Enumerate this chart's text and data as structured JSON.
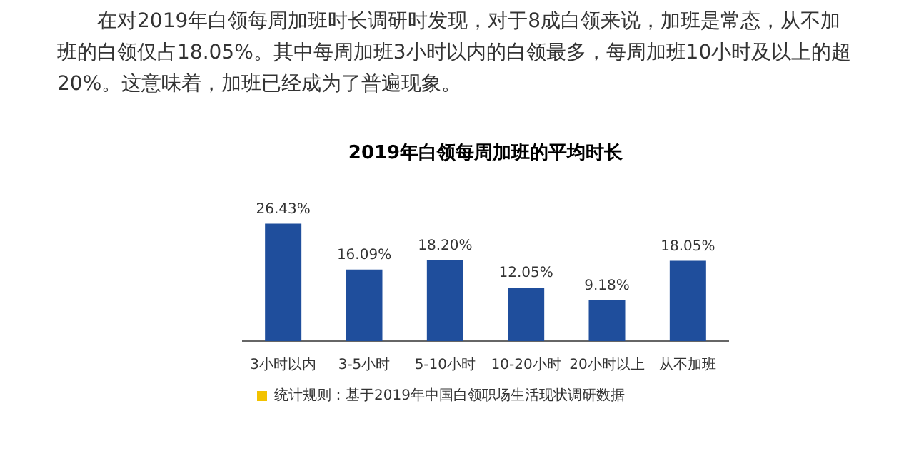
{
  "chart_data": {
    "type": "bar",
    "title": "2019年白领每周加班的平均时长",
    "categories": [
      "3小时以内",
      "3-5小时",
      "5-10小时",
      "10-20小时",
      "20小时以上",
      "从不加班"
    ],
    "values": [
      26.43,
      16.09,
      18.2,
      12.05,
      9.18,
      18.05
    ],
    "value_labels": [
      "26.43%",
      "16.09%",
      "18.20%",
      "12.05%",
      "9.18%",
      "18.05%"
    ],
    "color": "#1f4e9c",
    "grid": false,
    "legend": false,
    "tick_labels": "x",
    "annotations": [
      "在对2019年白领每周加班时长调研时发现，对于8成白领来说，加班是常态，从不加班的白领仅占18.05%。其中每周加班3小时以内的白领最多，每周加班10小时及以上的超20%。这意味着，加班已经成为了普遍现象。",
      "统计规则：基于2019年中国白领职场生活现状调研数据"
    ]
  }
}
